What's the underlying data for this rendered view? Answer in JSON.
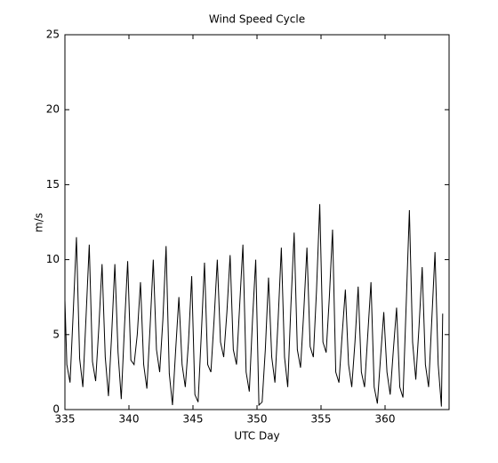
{
  "chart_data": {
    "type": "line",
    "title": "Wind Speed Cycle",
    "xlabel": "UTC Day",
    "ylabel": "m/s",
    "color": "#000000",
    "xlim": [
      335,
      365
    ],
    "xticks": [
      335,
      340,
      345,
      350,
      355,
      360
    ],
    "ylim": [
      0,
      25
    ],
    "yticks": [
      0,
      5,
      10,
      15,
      20,
      25
    ],
    "x": [
      335,
      335.15,
      335.4,
      335.65,
      335.9,
      336.15,
      336.4,
      336.65,
      336.9,
      337.15,
      337.4,
      337.65,
      337.9,
      338.15,
      338.4,
      338.65,
      338.9,
      339.15,
      339.4,
      339.65,
      339.9,
      340.15,
      340.4,
      340.65,
      340.9,
      341.15,
      341.4,
      341.65,
      341.9,
      342.15,
      342.4,
      342.65,
      342.9,
      343.15,
      343.4,
      343.65,
      343.9,
      344.15,
      344.4,
      344.65,
      344.9,
      345.15,
      345.4,
      345.65,
      345.9,
      346.15,
      346.4,
      346.65,
      346.9,
      347.15,
      347.4,
      347.65,
      347.9,
      348.15,
      348.4,
      348.65,
      348.9,
      349.15,
      349.4,
      349.65,
      349.9,
      350.15,
      350.4,
      350.65,
      350.9,
      351.15,
      351.4,
      351.65,
      351.9,
      352.15,
      352.4,
      352.65,
      352.9,
      353.15,
      353.4,
      353.65,
      353.9,
      354.15,
      354.4,
      354.65,
      354.9,
      355.15,
      355.4,
      355.65,
      355.9,
      356.15,
      356.4,
      356.65,
      356.9,
      357.15,
      357.4,
      357.65,
      357.9,
      358.15,
      358.4,
      358.65,
      358.9,
      359.15,
      359.4,
      359.65,
      359.9,
      360.15,
      360.4,
      360.65,
      360.9,
      361.15,
      361.4,
      361.65,
      361.9,
      362.15,
      362.4,
      362.65,
      362.9,
      363.15,
      363.4,
      363.65,
      363.9,
      364.15,
      364.4,
      364.5
    ],
    "values": [
      7.3,
      3.0,
      1.8,
      6.5,
      11.5,
      3.4,
      1.5,
      6.2,
      11.0,
      3.2,
      1.9,
      5.5,
      9.7,
      3.5,
      0.9,
      5.0,
      9.7,
      3.8,
      0.7,
      5.5,
      9.9,
      3.3,
      3.0,
      5.0,
      8.5,
      3.0,
      1.4,
      5.5,
      10.0,
      4.0,
      2.5,
      6.0,
      10.9,
      2.4,
      0.3,
      4.0,
      7.5,
      3.0,
      1.5,
      4.5,
      8.9,
      1.0,
      0.5,
      5.0,
      9.8,
      3.0,
      2.5,
      6.0,
      10.0,
      4.5,
      3.5,
      6.5,
      10.3,
      4.0,
      3.0,
      7.0,
      11.0,
      2.5,
      1.2,
      6.0,
      10.0,
      0.3,
      0.5,
      4.0,
      8.8,
      3.5,
      1.8,
      6.0,
      10.8,
      3.5,
      1.5,
      7.0,
      11.8,
      4.0,
      2.8,
      6.5,
      10.8,
      4.2,
      3.5,
      8.0,
      13.7,
      4.5,
      3.8,
      7.5,
      12.0,
      2.5,
      1.8,
      5.0,
      8.0,
      3.0,
      1.5,
      4.5,
      8.2,
      2.5,
      1.5,
      5.0,
      8.5,
      1.5,
      0.4,
      3.5,
      6.5,
      2.5,
      1.0,
      4.0,
      6.8,
      1.5,
      0.8,
      7.0,
      13.3,
      4.5,
      2.0,
      5.5,
      9.5,
      3.0,
      1.5,
      6.0,
      10.5,
      3.0,
      0.2,
      6.4
    ]
  }
}
